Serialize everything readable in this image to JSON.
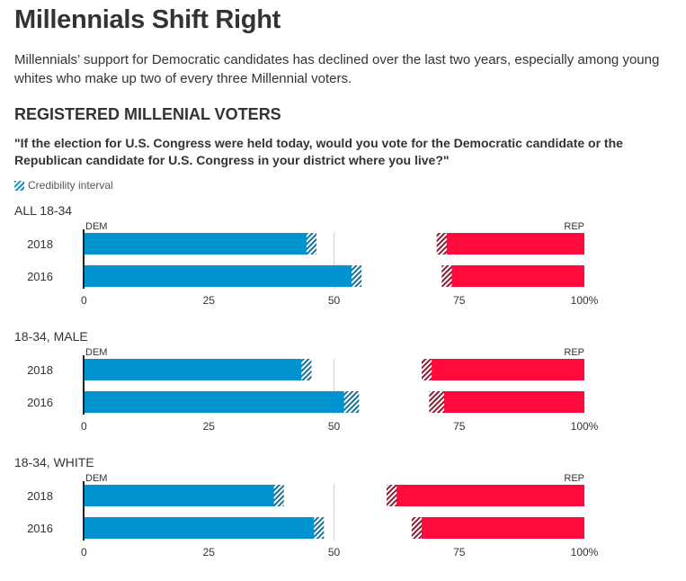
{
  "header": {
    "title": "Millennials Shift Right",
    "subtitle": "Millennials’ support for Democratic candidates has declined over the last two years, especially among young whites who make up two of every three Millennial voters.",
    "section": "REGISTERED MILLENIAL VOTERS",
    "question": "\"If the election for U.S. Congress were held today, would you vote for the Democratic candidate or the Republican candidate for U.S. Congress in your district where you live?\"",
    "legend_label": "Credibility interval"
  },
  "colors": {
    "dem": "#0093d0",
    "rep": "#ff0a3a",
    "dem_hatch": "#1b6f99",
    "rep_hatch": "#8a1d33"
  },
  "chart_data": {
    "type": "bar",
    "orientation": "horizontal-diverging",
    "xlim": [
      0,
      100
    ],
    "ticks": [
      "0",
      "25",
      "50",
      "75",
      "100%"
    ],
    "dem_label": "DEM",
    "rep_label": "REP",
    "groups": [
      {
        "name": "ALL 18-34",
        "rows": [
          {
            "year": "2018",
            "dem": 45.5,
            "dem_ci": 1,
            "rep": 28.5,
            "rep_ci": 1
          },
          {
            "year": "2016",
            "dem": 54.5,
            "dem_ci": 1,
            "rep": 27.5,
            "rep_ci": 1
          }
        ]
      },
      {
        "name": "18-34, MALE",
        "rows": [
          {
            "year": "2018",
            "dem": 44.5,
            "dem_ci": 1,
            "rep": 31.5,
            "rep_ci": 1
          },
          {
            "year": "2016",
            "dem": 53.5,
            "dem_ci": 1.5,
            "rep": 29.5,
            "rep_ci": 1.5
          }
        ]
      },
      {
        "name": "18-34, WHITE",
        "rows": [
          {
            "year": "2018",
            "dem": 39,
            "dem_ci": 1,
            "rep": 38.5,
            "rep_ci": 1
          },
          {
            "year": "2016",
            "dem": 47,
            "dem_ci": 1,
            "rep": 33.5,
            "rep_ci": 1
          }
        ]
      }
    ]
  }
}
